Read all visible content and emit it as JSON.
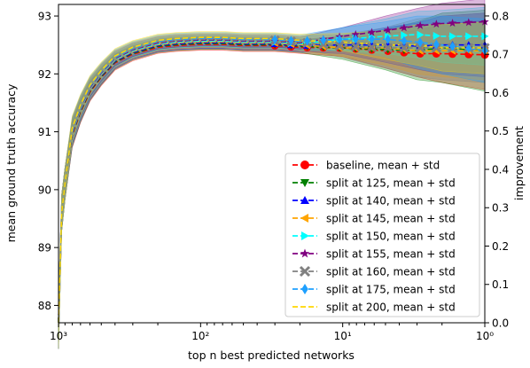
{
  "chart_data": {
    "type": "line",
    "xlabel": "top n best predicted networks",
    "ylabel": "mean ground truth accuracy",
    "y2label": "improvement",
    "x_scale": "log",
    "x_reversed": true,
    "xlim": [
      1000,
      1
    ],
    "ylim": [
      87.7,
      93.2
    ],
    "y2lim": [
      0.0,
      0.83
    ],
    "x_ticks": [
      1000,
      100,
      10,
      1
    ],
    "x_tick_labels": [
      "10³",
      "10²",
      "10¹",
      "10⁰"
    ],
    "y_ticks": [
      88,
      89,
      90,
      91,
      92,
      93
    ],
    "y_tick_labels": [
      "88",
      "89",
      "90",
      "91",
      "92",
      "93"
    ],
    "y2_ticks": [
      0.0,
      0.1,
      0.2,
      0.3,
      0.4,
      0.5,
      0.6,
      0.7,
      0.8
    ],
    "y2_tick_labels": [
      "0.0",
      "0.1",
      "0.2",
      "0.3",
      "0.4",
      "0.5",
      "0.6",
      "0.7",
      "0.8"
    ],
    "legend_position": "lower-right",
    "grid": false,
    "base_curve": {
      "x": [
        1000,
        950,
        900,
        800,
        700,
        600,
        500,
        400,
        300,
        200,
        150,
        100,
        70,
        50,
        30,
        20
      ],
      "y": [
        87.7,
        89.6,
        90.1,
        91.0,
        91.4,
        91.75,
        92.0,
        92.25,
        92.4,
        92.52,
        92.55,
        92.57,
        92.57,
        92.55,
        92.55,
        92.52
      ]
    },
    "series": [
      {
        "name": "baseline, mean + std",
        "color": "#ff0000",
        "marker": "circle",
        "tail_x": [
          20,
          10,
          5,
          3,
          2,
          1
        ],
        "tail_y": [
          92.52,
          92.45,
          92.4,
          92.35,
          92.35,
          92.33
        ],
        "band_width": [
          0.05,
          0.15,
          0.3,
          0.4,
          0.5,
          0.6
        ]
      },
      {
        "name": "split at 125, mean + std",
        "color": "#008000",
        "marker": "triangle-down",
        "tail_x": [
          20,
          10,
          5,
          3,
          2,
          1
        ],
        "tail_y": [
          92.52,
          92.45,
          92.42,
          92.4,
          92.45,
          92.4
        ],
        "band_width": [
          0.05,
          0.2,
          0.35,
          0.5,
          0.6,
          0.7
        ]
      },
      {
        "name": "split at 140, mean + std",
        "color": "#0000ff",
        "marker": "triangle-up",
        "tail_x": [
          20,
          10,
          5,
          3,
          2,
          1
        ],
        "tail_y": [
          92.52,
          92.5,
          92.5,
          92.48,
          92.5,
          92.5
        ],
        "band_width": [
          0.05,
          0.15,
          0.3,
          0.4,
          0.5,
          0.55
        ]
      },
      {
        "name": "split at 145, mean + std",
        "color": "#ffa500",
        "marker": "triangle-left",
        "tail_x": [
          20,
          10,
          5,
          3,
          2,
          1
        ],
        "tail_y": [
          92.52,
          92.45,
          92.45,
          92.4,
          92.4,
          92.4
        ],
        "band_width": [
          0.05,
          0.15,
          0.3,
          0.4,
          0.45,
          0.5
        ]
      },
      {
        "name": "split at 150, mean + std",
        "color": "#00ffff",
        "marker": "triangle-right",
        "tail_x": [
          20,
          10,
          5,
          3,
          2,
          1
        ],
        "tail_y": [
          92.55,
          92.6,
          92.65,
          92.68,
          92.65,
          92.65
        ],
        "band_width": [
          0.05,
          0.2,
          0.3,
          0.4,
          0.45,
          0.5
        ]
      },
      {
        "name": "split at 155, mean + std",
        "color": "#800080",
        "marker": "star",
        "tail_x": [
          20,
          10,
          5,
          3,
          2,
          1
        ],
        "tail_y": [
          92.55,
          92.65,
          92.75,
          92.83,
          92.87,
          92.9
        ],
        "band_width": [
          0.05,
          0.15,
          0.25,
          0.3,
          0.35,
          0.4
        ]
      },
      {
        "name": "split at 160, mean + std",
        "color": "#808080",
        "marker": "x",
        "tail_x": [
          20,
          10,
          5,
          3,
          2,
          1
        ],
        "tail_y": [
          92.52,
          92.48,
          92.45,
          92.45,
          92.45,
          92.45
        ],
        "band_width": [
          0.05,
          0.2,
          0.35,
          0.5,
          0.55,
          0.6
        ]
      },
      {
        "name": "split at 175, mean + std",
        "color": "#1ea0ff",
        "marker": "diamond",
        "tail_x": [
          20,
          10,
          5,
          3,
          2,
          1
        ],
        "tail_y": [
          92.55,
          92.6,
          92.6,
          92.55,
          92.5,
          92.4
        ],
        "band_width": [
          0.05,
          0.2,
          0.3,
          0.45,
          0.5,
          0.55
        ]
      },
      {
        "name": "split at 200, mean + std",
        "color": "#ffd700",
        "marker": "none",
        "tail_x": [
          20,
          10,
          5,
          3,
          2,
          1
        ],
        "tail_y": [
          92.55,
          92.55,
          92.5,
          92.5,
          92.45,
          92.45
        ],
        "band_width": [
          0.05,
          0.15,
          0.25,
          0.35,
          0.4,
          0.45
        ]
      }
    ]
  }
}
